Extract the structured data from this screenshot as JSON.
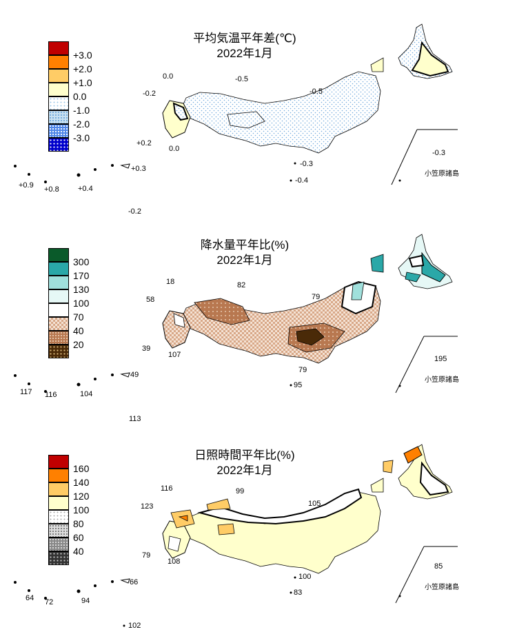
{
  "panels": [
    {
      "title_line1": "平均気温平年差(℃)",
      "title_line2": "2022年1月",
      "legend": {
        "colors": [
          "#c00000",
          "#ff8000",
          "#ffcc66",
          "#ffffcc",
          "#ffffff",
          "#c8e0f0",
          "#6699ff",
          "#0000cc"
        ],
        "labels": [
          "+3.0",
          "+2.0",
          "+1.0",
          "0.0",
          "-1.0",
          "-2.0",
          "-3.0"
        ]
      },
      "values": [
        "0.0",
        "-0.5",
        "-0.2",
        "-0.5",
        "+0.2",
        "0.0",
        "-0.3",
        "-0.4",
        "+0.3",
        "+0.9",
        "+0.8",
        "+0.4",
        "-0.2",
        "-0.3"
      ],
      "bonin_label": "小笠原諸島"
    },
    {
      "title_line1": "降水量平年比(%)",
      "title_line2": "2022年1月",
      "legend": {
        "colors": [
          "#0a5a2a",
          "#2aa8a8",
          "#a0e0dc",
          "#e6f8f6",
          "#ffffff",
          "#f0d8c8",
          "#b87850",
          "#4a2a08"
        ],
        "labels": [
          "300",
          "170",
          "130",
          "100",
          "70",
          "40",
          "20"
        ]
      },
      "values": [
        "18",
        "82",
        "58",
        "79",
        "39",
        "107",
        "79",
        "95",
        "49",
        "117",
        "116",
        "104",
        "113",
        "195"
      ],
      "bonin_label": "小笠原諸島"
    },
    {
      "title_line1": "日照時間平年比(%)",
      "title_line2": "2022年1月",
      "legend": {
        "colors": [
          "#c00000",
          "#ff8000",
          "#ffcc66",
          "#ffffcc",
          "#ffffff",
          "#cccccc",
          "#888888",
          "#333333"
        ],
        "labels": [
          "160",
          "140",
          "120",
          "100",
          "80",
          "60",
          "40"
        ]
      },
      "values": [
        "116",
        "99",
        "123",
        "105",
        "79",
        "108",
        "100",
        "83",
        "66",
        "64",
        "72",
        "94",
        "102",
        "85"
      ],
      "bonin_label": "小笠原諸島"
    }
  ]
}
